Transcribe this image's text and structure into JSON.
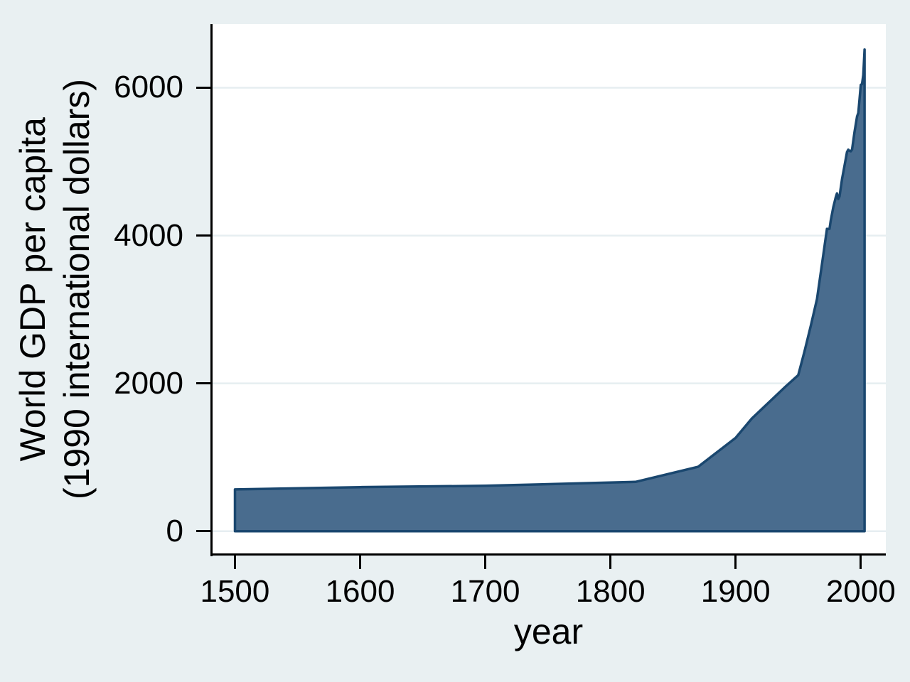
{
  "figure": {
    "background_color": "#e9f0f2",
    "plot_background_color": "#ffffff",
    "axis_color": "#000000",
    "text_color": "#000000",
    "gridline_color": "#e6eef1",
    "area_fill_color": "#496c8e",
    "area_stroke_color": "#1a476f"
  },
  "chart_data": {
    "type": "area",
    "xlabel": "year",
    "ylabel_lines": [
      "World GDP per capita",
      "(1990 international dollars)"
    ],
    "x_ticks": [
      1500,
      1600,
      1700,
      1800,
      1900,
      2000
    ],
    "y_ticks": [
      0,
      2000,
      4000,
      6000
    ],
    "gridline_values": [
      0,
      2000,
      4000,
      6000
    ],
    "xlim": [
      1481,
      2020
    ],
    "ylim": [
      -310,
      6860
    ],
    "grid": "horizontal",
    "legend": "none",
    "series": [
      {
        "name": "World GDP per capita (1990 international dollars)",
        "points": [
          [
            1500,
            566
          ],
          [
            1600,
            596
          ],
          [
            1700,
            615
          ],
          [
            1820,
            667
          ],
          [
            1870,
            871
          ],
          [
            1900,
            1262
          ],
          [
            1913,
            1526
          ],
          [
            1940,
            1958
          ],
          [
            1950,
            2111
          ],
          [
            1955,
            2432
          ],
          [
            1960,
            2777
          ],
          [
            1965,
            3142
          ],
          [
            1970,
            3736
          ],
          [
            1973,
            4091
          ],
          [
            1974,
            4088
          ],
          [
            1975,
            4091
          ],
          [
            1976,
            4202
          ],
          [
            1978,
            4383
          ],
          [
            1980,
            4520
          ],
          [
            1981,
            4571
          ],
          [
            1982,
            4494
          ],
          [
            1983,
            4531
          ],
          [
            1985,
            4764
          ],
          [
            1987,
            4945
          ],
          [
            1989,
            5130
          ],
          [
            1990,
            5162
          ],
          [
            1991,
            5145
          ],
          [
            1992,
            5140
          ],
          [
            1993,
            5164
          ],
          [
            1995,
            5404
          ],
          [
            1997,
            5610
          ],
          [
            1998,
            5660
          ],
          [
            2000,
            6038
          ],
          [
            2001,
            6049
          ],
          [
            2002,
            6172
          ],
          [
            2003,
            6516
          ]
        ]
      }
    ]
  }
}
